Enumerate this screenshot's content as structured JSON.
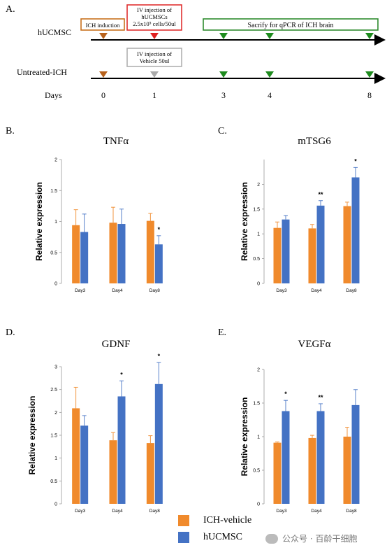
{
  "colors": {
    "ich": "#F08A2C",
    "huc": "#4472C4",
    "err": "#666666",
    "box_brown": "#C8711D",
    "box_red": "#E03030",
    "box_gray": "#B0B0B0",
    "box_green": "#2E8B2E",
    "tri_brown": "#B8621C",
    "tri_red": "#E02020",
    "tri_gray": "#AAAAAA",
    "tri_green": "#1E8B1E"
  },
  "timeline": {
    "panel": "A.",
    "row1_label": "hUCMSC",
    "row2_label": "Untreated-ICH",
    "days_label": "Days",
    "days": [
      "0",
      "1",
      "3",
      "4",
      "8"
    ],
    "box_ich": "ICH induction",
    "box_iv_cells": [
      "IV injection of",
      "hUCMSCs",
      "2.5x10⁵ cells/50ul"
    ],
    "box_sacrifice": "Sacrify for qPCR of ICH brain",
    "box_vehicle": [
      "IV injection of",
      "Vehicle 50ul"
    ]
  },
  "chart_data": [
    {
      "type": "bar",
      "panel": "B.",
      "title": "TNFα",
      "ylabel": "Relative expression",
      "categories": [
        "Day3",
        "Day4",
        "Day8"
      ],
      "ylim": [
        0,
        2
      ],
      "yticks": [
        "0",
        "0.5",
        "1",
        "1.5",
        "2"
      ],
      "series": [
        {
          "name": "ICH-vehicle",
          "values": [
            0.94,
            0.98,
            1.01
          ],
          "errors": [
            0.25,
            0.25,
            0.12
          ]
        },
        {
          "name": "hUCMSC",
          "values": [
            0.83,
            0.96,
            0.63
          ],
          "errors": [
            0.29,
            0.24,
            0.14
          ]
        }
      ],
      "significance": [
        "",
        "",
        "*"
      ]
    },
    {
      "type": "bar",
      "panel": "C.",
      "title": "mTSG6",
      "ylabel": "Relative expression",
      "categories": [
        "Day3",
        "Day4",
        "Day8"
      ],
      "ylim": [
        0,
        2.5
      ],
      "yticks": [
        "0",
        "0.5",
        "1",
        "1.5",
        "2"
      ],
      "series": [
        {
          "name": "ICH-vehicle",
          "values": [
            1.12,
            1.11,
            1.56
          ],
          "errors": [
            0.12,
            0.08,
            0.08
          ]
        },
        {
          "name": "hUCMSC",
          "values": [
            1.29,
            1.57,
            2.14
          ],
          "errors": [
            0.08,
            0.1,
            0.2
          ]
        }
      ],
      "significance": [
        "",
        "**",
        "*"
      ]
    },
    {
      "type": "bar",
      "panel": "D.",
      "title": "GDNF",
      "ylabel": "Relative expression",
      "categories": [
        "Day3",
        "Day4",
        "Day8"
      ],
      "ylim": [
        0,
        3
      ],
      "yticks": [
        "0",
        "0.5",
        "1",
        "1.5",
        "2",
        "2.5",
        "3"
      ],
      "series": [
        {
          "name": "ICH-vehicle",
          "values": [
            2.09,
            1.39,
            1.33
          ],
          "errors": [
            0.46,
            0.17,
            0.16
          ]
        },
        {
          "name": "hUCMSC",
          "values": [
            1.71,
            2.35,
            2.62
          ],
          "errors": [
            0.22,
            0.34,
            0.47
          ]
        }
      ],
      "significance": [
        "",
        "*",
        "*"
      ]
    },
    {
      "type": "bar",
      "panel": "E.",
      "title": "VEGFα",
      "ylabel": "Relative expression",
      "categories": [
        "Day3",
        "Day4",
        "Day8"
      ],
      "ylim": [
        0,
        2
      ],
      "yticks": [
        "0",
        "0.5",
        "1",
        "1.5",
        "2"
      ],
      "series": [
        {
          "name": "ICH-vehicle",
          "values": [
            0.91,
            0.98,
            1.0
          ],
          "errors": [
            0.01,
            0.04,
            0.14
          ]
        },
        {
          "name": "hUCMSC",
          "values": [
            1.38,
            1.38,
            1.47
          ],
          "errors": [
            0.16,
            0.11,
            0.23
          ]
        }
      ],
      "significance": [
        "*",
        "**",
        ""
      ]
    }
  ],
  "legend": {
    "items": [
      "ICH-vehicle",
      "hUCMSC"
    ]
  },
  "watermark": "公众号 · 百龄干细胞"
}
